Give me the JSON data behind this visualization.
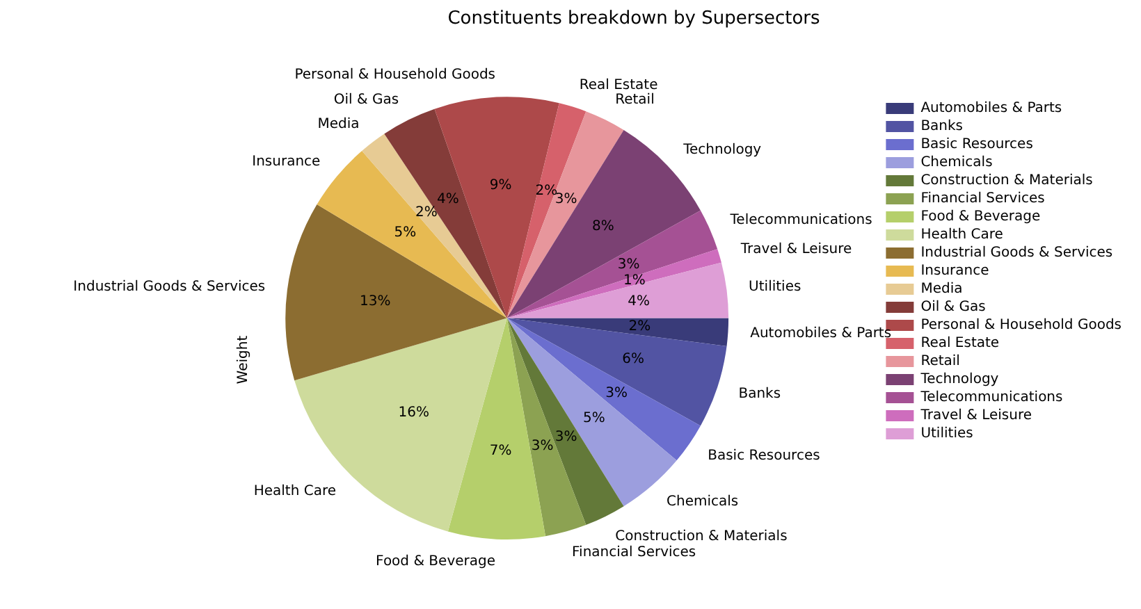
{
  "chart_data": {
    "type": "pie",
    "title": "Constituents breakdown by Supersectors",
    "ylabel": "Weight",
    "categories": [
      "Automobiles & Parts",
      "Banks",
      "Basic Resources",
      "Chemicals",
      "Construction & Materials",
      "Financial Services",
      "Food & Beverage",
      "Health Care",
      "Industrial Goods & Services",
      "Insurance",
      "Media",
      "Oil & Gas",
      "Personal & Household Goods",
      "Real Estate",
      "Retail",
      "Technology",
      "Telecommunications",
      "Travel & Leisure",
      "Utilities"
    ],
    "values": [
      2,
      6,
      3,
      5,
      3,
      3,
      7,
      16,
      13,
      5,
      2,
      4,
      9,
      2,
      3,
      8,
      3,
      1,
      4
    ],
    "value_labels": [
      "2%",
      "6%",
      "3%",
      "5%",
      "3%",
      "3%",
      "7%",
      "16%",
      "13%",
      "5%",
      "2%",
      "4%",
      "9%",
      "2%",
      "3%",
      "8%",
      "3%",
      "1%",
      "4%"
    ],
    "colors": [
      "#393b79",
      "#5254a3",
      "#6b6ecf",
      "#9c9ede",
      "#637939",
      "#8ca252",
      "#b5cf6b",
      "#cedb9c",
      "#8c6d31",
      "#e7ba52",
      "#e7cb94",
      "#843c39",
      "#ad494a",
      "#d6616b",
      "#e7969c",
      "#7b4173",
      "#a55194",
      "#ce6dbd",
      "#de9ed6"
    ],
    "legend": "right"
  }
}
